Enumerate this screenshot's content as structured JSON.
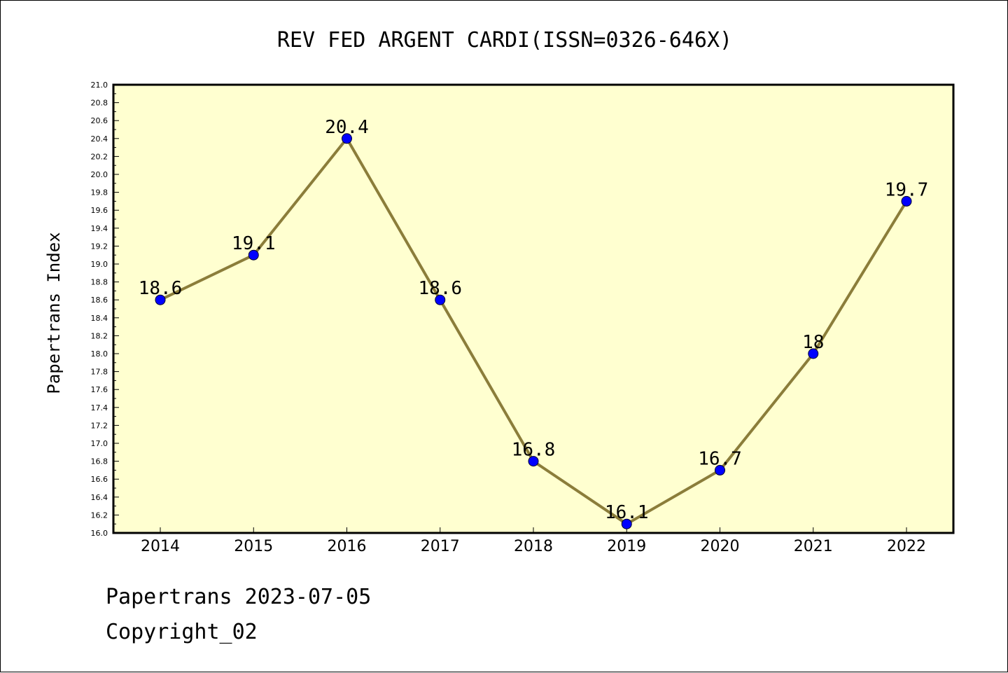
{
  "chart_data": {
    "type": "line",
    "title": "REV FED ARGENT CARDI(ISSN=0326-646X)",
    "xlabel": "",
    "ylabel": "Papertrans Index",
    "categories": [
      "2014",
      "2015",
      "2016",
      "2017",
      "2018",
      "2019",
      "2020",
      "2021",
      "2022"
    ],
    "series": [
      {
        "values": [
          18.6,
          19.1,
          20.4,
          18.6,
          16.8,
          16.1,
          16.7,
          18.0,
          19.7
        ],
        "labels": [
          "18.6",
          "19.1",
          "20.4",
          "18.6",
          "16.8",
          "16.1",
          "16.7",
          "18",
          "19.7"
        ]
      }
    ],
    "ylim": [
      16.0,
      21.0
    ],
    "ytick_step": 0.2,
    "grid": false,
    "legend": "none",
    "colors": {
      "plot_background": "#FFFFD0",
      "line": "#8B7D3A",
      "marker": "#0000FF"
    }
  },
  "footer": {
    "line1": "Papertrans 2023-07-05",
    "line2": "Copyright_02"
  }
}
